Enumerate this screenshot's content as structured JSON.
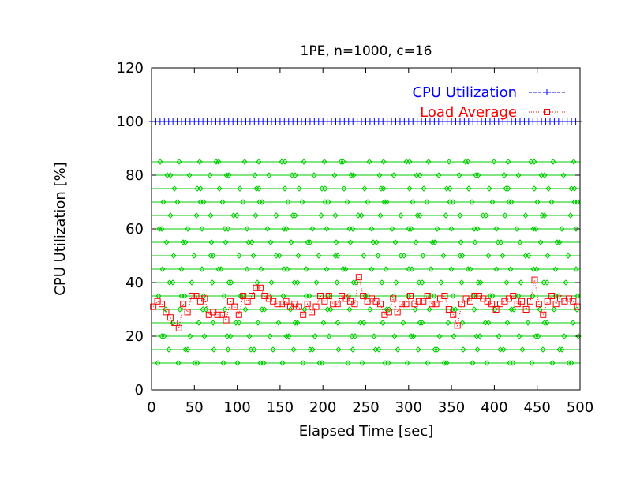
{
  "chart_data": {
    "type": "line",
    "title": "1PE, n=1000, c=16",
    "xlabel": "Elapsed Time [sec]",
    "ylabel": "CPU Utilization [%]",
    "xlim": [
      0,
      500
    ],
    "ylim": [
      0,
      120
    ],
    "xticks": [
      0,
      50,
      100,
      150,
      200,
      250,
      300,
      350,
      400,
      450,
      500
    ],
    "yticks": [
      0,
      20,
      40,
      60,
      80,
      100,
      120
    ],
    "grid": false,
    "legend_position": "top-right",
    "series": [
      {
        "name": "CPU Utilization",
        "color": "#0000ff",
        "marker": "plus",
        "style": "dashed",
        "x": [
          0,
          5,
          10,
          15,
          20,
          25,
          30,
          35,
          40,
          45,
          50,
          55,
          60,
          65,
          70,
          75,
          80,
          85,
          90,
          95,
          100,
          105,
          110,
          115,
          120,
          125,
          130,
          135,
          140,
          145,
          150,
          155,
          160,
          165,
          170,
          175,
          180,
          185,
          190,
          195,
          200,
          205,
          210,
          215,
          220,
          225,
          230,
          235,
          240,
          245,
          250,
          255,
          260,
          265,
          270,
          275,
          280,
          285,
          290,
          295,
          300,
          305,
          310,
          315,
          320,
          325,
          330,
          335,
          340,
          345,
          350,
          355,
          360,
          365,
          370,
          375,
          380,
          385,
          390,
          395,
          400,
          405,
          410,
          415,
          420,
          425,
          430,
          435,
          440,
          445,
          450,
          455,
          460,
          465,
          470,
          475,
          480,
          485,
          490,
          495,
          500
        ],
        "values": [
          100,
          100,
          100,
          100,
          100,
          100,
          100,
          100,
          100,
          100,
          100,
          100,
          100,
          100,
          100,
          100,
          100,
          100,
          100,
          100,
          100,
          100,
          100,
          100,
          100,
          100,
          100,
          100,
          100,
          100,
          100,
          100,
          100,
          100,
          100,
          100,
          100,
          100,
          100,
          100,
          100,
          100,
          100,
          100,
          100,
          100,
          100,
          100,
          100,
          100,
          100,
          100,
          100,
          100,
          100,
          100,
          100,
          100,
          100,
          100,
          100,
          100,
          100,
          100,
          100,
          100,
          100,
          100,
          100,
          100,
          100,
          100,
          100,
          100,
          100,
          100,
          100,
          100,
          100,
          100,
          100,
          100,
          100,
          100,
          100,
          100,
          100,
          100,
          100,
          100,
          100,
          100,
          100,
          100,
          100,
          100,
          100,
          100,
          100,
          100,
          100
        ]
      },
      {
        "name": "Load Average",
        "color": "#ff0000",
        "marker": "square",
        "style": "dotted",
        "x": [
          2,
          7,
          12,
          17,
          22,
          27,
          32,
          37,
          42,
          47,
          52,
          57,
          62,
          67,
          72,
          77,
          82,
          87,
          92,
          97,
          102,
          107,
          112,
          117,
          122,
          127,
          132,
          137,
          142,
          147,
          152,
          157,
          162,
          167,
          172,
          177,
          182,
          187,
          192,
          197,
          202,
          207,
          212,
          217,
          222,
          227,
          232,
          237,
          242,
          247,
          252,
          257,
          262,
          267,
          272,
          277,
          282,
          287,
          292,
          297,
          302,
          307,
          312,
          317,
          322,
          327,
          332,
          337,
          342,
          347,
          352,
          357,
          362,
          367,
          372,
          377,
          382,
          387,
          392,
          397,
          402,
          407,
          412,
          417,
          422,
          427,
          432,
          437,
          442,
          447,
          452,
          457,
          462,
          467,
          472,
          477,
          482,
          487,
          492,
          497
        ],
        "values": [
          31,
          33,
          32,
          29,
          27,
          25,
          23,
          32,
          29,
          35,
          35,
          33,
          34,
          28,
          29,
          28,
          28,
          26,
          33,
          31,
          28,
          35,
          33,
          35,
          38,
          38,
          35,
          34,
          33,
          32,
          32,
          33,
          31,
          32,
          31,
          28,
          32,
          29,
          31,
          35,
          33,
          35,
          32,
          32,
          35,
          34,
          33,
          32,
          42,
          35,
          33,
          34,
          33,
          32,
          28,
          29,
          34,
          29,
          32,
          32,
          35,
          32,
          33,
          33,
          35,
          32,
          32,
          34,
          35,
          30,
          28,
          24,
          32,
          34,
          33,
          35,
          35,
          34,
          33,
          32,
          30,
          32,
          33,
          34,
          35,
          32,
          33,
          30,
          33,
          41,
          32,
          28,
          33,
          35,
          32,
          34,
          33,
          34,
          33,
          31
        ]
      }
    ],
    "green_background_series": {
      "color": "#00cc00",
      "marker": "diamond",
      "levels": [
        10,
        15,
        20,
        25,
        30,
        35,
        40,
        45,
        50,
        55,
        60,
        65,
        70,
        75,
        80,
        85
      ]
    }
  }
}
